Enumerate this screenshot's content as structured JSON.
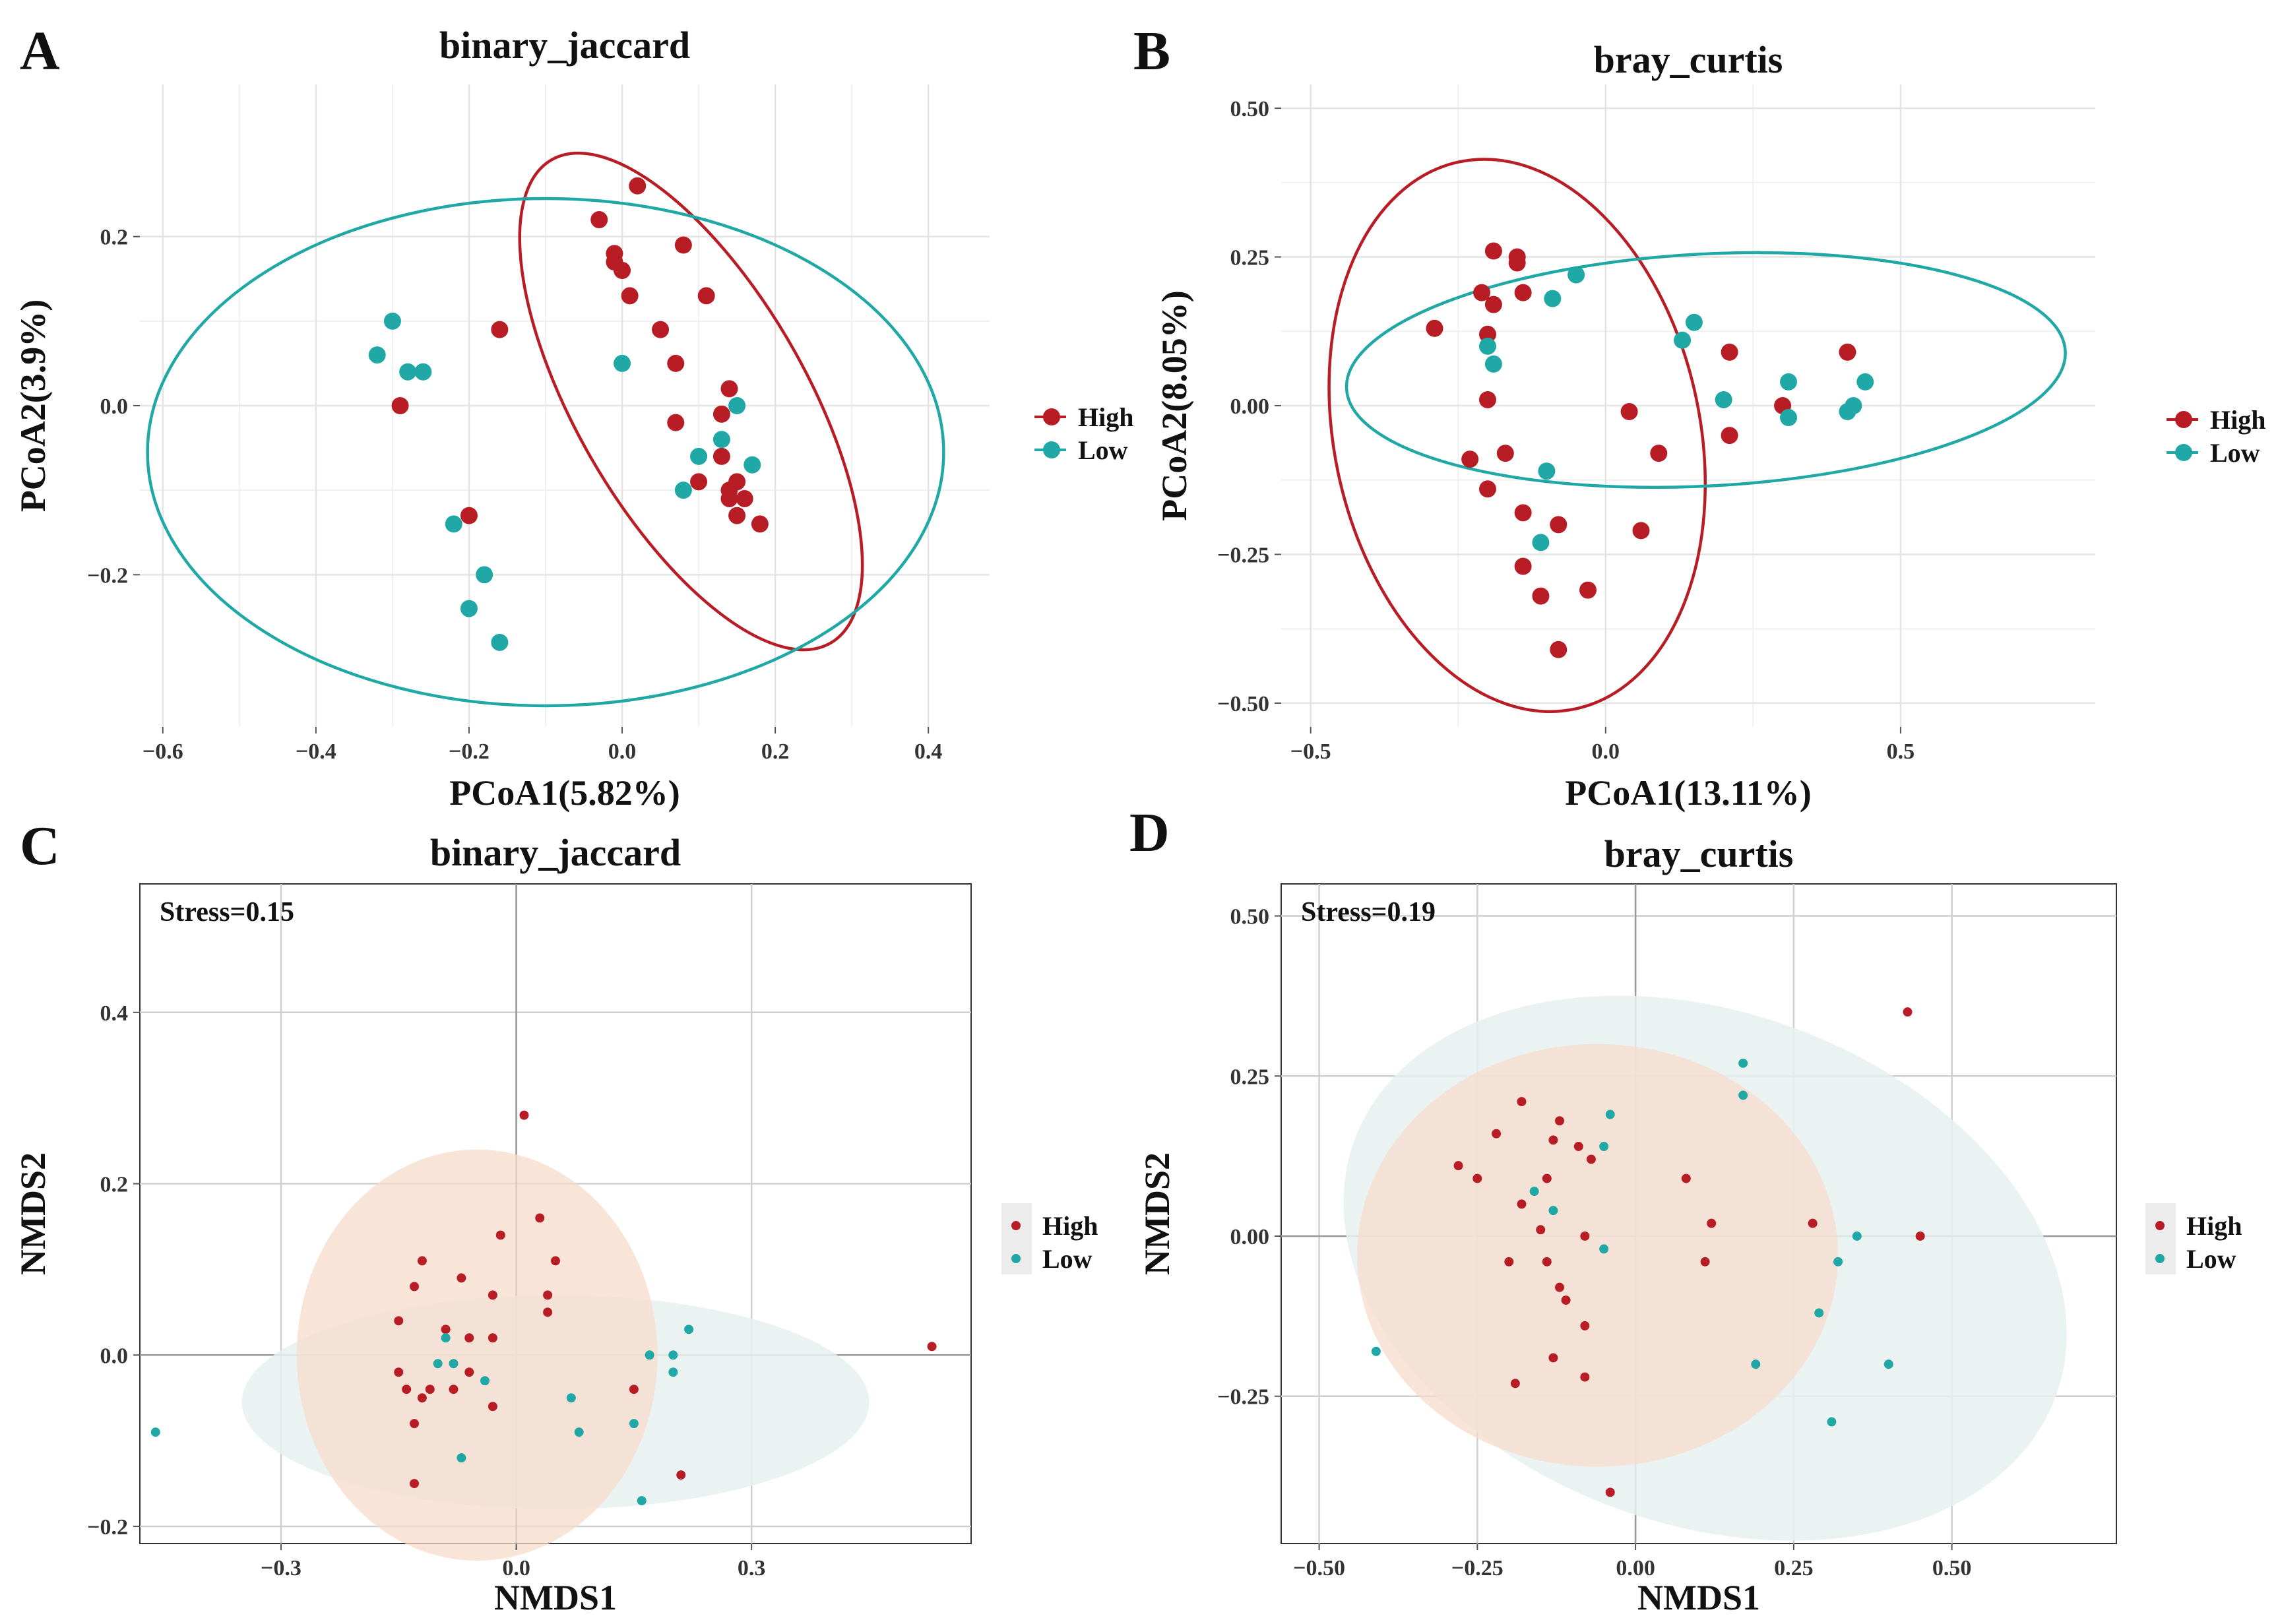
{
  "legend": {
    "groups": [
      "High",
      "Low"
    ]
  },
  "colors": {
    "High": "#b81c25",
    "Low": "#1fa8a6",
    "High_fill": "#f5dccb",
    "Low_fill": "#e7f0f0"
  },
  "chart_data": [
    {
      "panel": "A",
      "type": "scatter",
      "title": "binary_jaccard",
      "xlabel": "PCoA1(5.82%)",
      "ylabel": "PCoA2(3.9%)",
      "xlim": [
        -0.63,
        0.48
      ],
      "ylim": [
        -0.38,
        0.38
      ],
      "xticks": [
        -0.6,
        -0.4,
        -0.2,
        0.0,
        0.2,
        0.4
      ],
      "xticklabels": [
        "−0.6",
        "−0.4",
        "−0.2",
        "0.0",
        "0.2",
        "0.4"
      ],
      "yticks": [
        -0.2,
        0.0,
        0.2
      ],
      "yticklabels": [
        "−0.2",
        "0.0",
        "0.2"
      ],
      "ellipses": {
        "High": {
          "cx": 0.09,
          "cy": 0.005,
          "rx": 0.15,
          "ry": 0.33,
          "angle_deg": -30
        },
        "Low": {
          "cx": -0.1,
          "cy": -0.055,
          "rx": 0.52,
          "ry": 0.3,
          "angle_deg": 0
        }
      },
      "series": [
        {
          "name": "High",
          "points": [
            [
              0.02,
              0.26
            ],
            [
              -0.03,
              0.22
            ],
            [
              -0.01,
              0.18
            ],
            [
              -0.01,
              0.17
            ],
            [
              0.0,
              0.16
            ],
            [
              0.08,
              0.19
            ],
            [
              0.11,
              0.13
            ],
            [
              0.01,
              0.13
            ],
            [
              0.05,
              0.09
            ],
            [
              -0.16,
              0.09
            ],
            [
              0.07,
              0.05
            ],
            [
              0.14,
              0.02
            ],
            [
              -0.29,
              0.0
            ],
            [
              0.13,
              -0.01
            ],
            [
              0.07,
              -0.02
            ],
            [
              0.13,
              -0.06
            ],
            [
              0.1,
              -0.09
            ],
            [
              0.15,
              -0.09
            ],
            [
              0.14,
              -0.1
            ],
            [
              0.14,
              -0.11
            ],
            [
              0.16,
              -0.11
            ],
            [
              0.15,
              -0.13
            ],
            [
              0.18,
              -0.14
            ],
            [
              -0.2,
              -0.13
            ]
          ]
        },
        {
          "name": "Low",
          "points": [
            [
              -0.3,
              0.1
            ],
            [
              -0.32,
              0.06
            ],
            [
              -0.28,
              0.04
            ],
            [
              -0.26,
              0.04
            ],
            [
              0.0,
              0.05
            ],
            [
              0.15,
              0.0
            ],
            [
              0.13,
              -0.04
            ],
            [
              0.1,
              -0.06
            ],
            [
              0.17,
              -0.07
            ],
            [
              0.08,
              -0.1
            ],
            [
              -0.22,
              -0.14
            ],
            [
              -0.18,
              -0.2
            ],
            [
              -0.2,
              -0.24
            ],
            [
              -0.16,
              -0.28
            ]
          ]
        }
      ]
    },
    {
      "panel": "B",
      "type": "scatter",
      "title": "bray_curtis",
      "xlabel": "PCoA1(13.11%)",
      "ylabel": "PCoA2(8.05%)",
      "xlim": [
        -0.55,
        0.83
      ],
      "ylim": [
        -0.54,
        0.54
      ],
      "xticks": [
        -0.5,
        0.0,
        0.5
      ],
      "xticklabels": [
        "−0.5",
        "0.0",
        "0.5"
      ],
      "yticks": [
        -0.5,
        -0.25,
        0.0,
        0.25,
        0.5
      ],
      "yticklabels": [
        "−0.50",
        "−0.25",
        "0.00",
        "0.25",
        "0.50"
      ],
      "ellipses": {
        "High": {
          "cx": -0.15,
          "cy": -0.05,
          "rx": 0.31,
          "ry": 0.47,
          "angle_deg": -12
        },
        "Low": {
          "cx": 0.17,
          "cy": 0.06,
          "rx": 0.61,
          "ry": 0.195,
          "angle_deg": -3
        }
      },
      "series": [
        {
          "name": "High",
          "points": [
            [
              -0.19,
              0.26
            ],
            [
              -0.15,
              0.25
            ],
            [
              -0.15,
              0.24
            ],
            [
              -0.21,
              0.19
            ],
            [
              -0.14,
              0.19
            ],
            [
              -0.19,
              0.17
            ],
            [
              -0.29,
              0.13
            ],
            [
              -0.2,
              0.12
            ],
            [
              -0.2,
              0.01
            ],
            [
              0.21,
              0.09
            ],
            [
              0.41,
              0.09
            ],
            [
              0.3,
              0.0
            ],
            [
              0.04,
              -0.01
            ],
            [
              0.09,
              -0.08
            ],
            [
              0.21,
              -0.05
            ],
            [
              -0.17,
              -0.08
            ],
            [
              -0.23,
              -0.09
            ],
            [
              -0.2,
              -0.14
            ],
            [
              -0.14,
              -0.18
            ],
            [
              -0.08,
              -0.2
            ],
            [
              0.06,
              -0.21
            ],
            [
              -0.14,
              -0.27
            ],
            [
              -0.11,
              -0.32
            ],
            [
              -0.03,
              -0.31
            ],
            [
              -0.08,
              -0.41
            ]
          ]
        },
        {
          "name": "Low",
          "points": [
            [
              -0.05,
              0.22
            ],
            [
              -0.09,
              0.18
            ],
            [
              0.15,
              0.14
            ],
            [
              0.13,
              0.11
            ],
            [
              -0.2,
              0.1
            ],
            [
              -0.19,
              0.07
            ],
            [
              0.2,
              0.01
            ],
            [
              0.31,
              0.04
            ],
            [
              0.31,
              -0.02
            ],
            [
              0.41,
              -0.01
            ],
            [
              0.42,
              0.0
            ],
            [
              0.44,
              0.04
            ],
            [
              -0.1,
              -0.11
            ],
            [
              -0.11,
              -0.23
            ]
          ]
        }
      ]
    },
    {
      "panel": "C",
      "type": "scatter",
      "title": "binary_jaccard",
      "xlabel": "NMDS1",
      "ylabel": "NMDS2",
      "annotation": "Stress=0.15",
      "xlim": [
        -0.48,
        0.58
      ],
      "ylim": [
        -0.22,
        0.55
      ],
      "xticks": [
        -0.3,
        0.0,
        0.3
      ],
      "xticklabels": [
        "−0.3",
        "0.0",
        "0.3"
      ],
      "yticks": [
        -0.2,
        0.0,
        0.2,
        0.4
      ],
      "yticklabels": [
        "−0.2",
        "0.0",
        "0.2",
        "0.4"
      ],
      "ellipses": {
        "High": {
          "cx": -0.05,
          "cy": 0.0,
          "rx": 0.23,
          "ry": 0.24,
          "angle_deg": 0
        },
        "Low": {
          "cx": 0.05,
          "cy": -0.055,
          "rx": 0.4,
          "ry": 0.125,
          "angle_deg": 0
        }
      },
      "series": [
        {
          "name": "High",
          "points": [
            [
              0.01,
              0.28
            ],
            [
              0.03,
              0.16
            ],
            [
              -0.02,
              0.14
            ],
            [
              0.05,
              0.11
            ],
            [
              -0.12,
              0.11
            ],
            [
              -0.07,
              0.09
            ],
            [
              -0.13,
              0.08
            ],
            [
              -0.03,
              0.07
            ],
            [
              0.04,
              0.07
            ],
            [
              0.04,
              0.05
            ],
            [
              -0.15,
              0.04
            ],
            [
              -0.09,
              0.03
            ],
            [
              -0.06,
              0.02
            ],
            [
              -0.03,
              0.02
            ],
            [
              -0.15,
              -0.02
            ],
            [
              -0.06,
              -0.02
            ],
            [
              -0.14,
              -0.04
            ],
            [
              -0.11,
              -0.04
            ],
            [
              -0.08,
              -0.04
            ],
            [
              -0.12,
              -0.05
            ],
            [
              -0.03,
              -0.06
            ],
            [
              -0.13,
              -0.08
            ],
            [
              0.15,
              -0.04
            ],
            [
              0.53,
              0.01
            ],
            [
              -0.13,
              -0.15
            ],
            [
              0.21,
              -0.14
            ]
          ]
        },
        {
          "name": "Low",
          "points": [
            [
              -0.09,
              0.02
            ],
            [
              -0.1,
              -0.01
            ],
            [
              -0.08,
              -0.01
            ],
            [
              -0.04,
              -0.03
            ],
            [
              0.07,
              -0.05
            ],
            [
              0.08,
              -0.09
            ],
            [
              0.17,
              0.0
            ],
            [
              0.2,
              0.0
            ],
            [
              0.22,
              0.03
            ],
            [
              0.2,
              -0.02
            ],
            [
              0.15,
              -0.08
            ],
            [
              -0.07,
              -0.12
            ],
            [
              0.16,
              -0.17
            ],
            [
              -0.46,
              -0.09
            ]
          ]
        }
      ]
    },
    {
      "panel": "D",
      "type": "scatter",
      "title": "bray_curtis",
      "xlabel": "NMDS1",
      "ylabel": "NMDS2",
      "annotation": "Stress=0.19",
      "xlim": [
        -0.56,
        0.76
      ],
      "ylim": [
        -0.48,
        0.55
      ],
      "xticks": [
        -0.5,
        -0.25,
        0.0,
        0.25,
        0.5
      ],
      "xticklabels": [
        "−0.50",
        "−0.25",
        "0.00",
        "0.25",
        "0.50"
      ],
      "yticks": [
        -0.25,
        0.0,
        0.25,
        0.5
      ],
      "yticklabels": [
        "−0.25",
        "0.00",
        "0.25",
        "0.50"
      ],
      "ellipses": {
        "High": {
          "cx": -0.06,
          "cy": -0.03,
          "rx": 0.38,
          "ry": 0.33,
          "angle_deg": 0
        },
        "Low": {
          "cx": 0.11,
          "cy": -0.05,
          "rx": 0.59,
          "ry": 0.4,
          "angle_deg": 20
        }
      },
      "series": [
        {
          "name": "High",
          "points": [
            [
              0.43,
              0.35
            ],
            [
              -0.18,
              0.21
            ],
            [
              -0.12,
              0.18
            ],
            [
              -0.22,
              0.16
            ],
            [
              -0.13,
              0.15
            ],
            [
              -0.09,
              0.14
            ],
            [
              -0.07,
              0.12
            ],
            [
              -0.28,
              0.11
            ],
            [
              -0.25,
              0.09
            ],
            [
              0.08,
              0.09
            ],
            [
              -0.14,
              0.09
            ],
            [
              -0.18,
              0.05
            ],
            [
              0.12,
              0.02
            ],
            [
              0.28,
              0.02
            ],
            [
              -0.15,
              0.01
            ],
            [
              -0.08,
              0.0
            ],
            [
              0.45,
              0.0
            ],
            [
              -0.2,
              -0.04
            ],
            [
              -0.14,
              -0.04
            ],
            [
              0.11,
              -0.04
            ],
            [
              -0.12,
              -0.08
            ],
            [
              -0.11,
              -0.1
            ],
            [
              -0.08,
              -0.14
            ],
            [
              -0.13,
              -0.19
            ],
            [
              -0.08,
              -0.22
            ],
            [
              -0.19,
              -0.23
            ],
            [
              -0.04,
              -0.4
            ]
          ]
        },
        {
          "name": "Low",
          "points": [
            [
              0.17,
              0.27
            ],
            [
              0.17,
              0.22
            ],
            [
              -0.04,
              0.19
            ],
            [
              -0.05,
              0.14
            ],
            [
              -0.16,
              0.07
            ],
            [
              -0.13,
              0.04
            ],
            [
              -0.05,
              -0.02
            ],
            [
              0.35,
              0.0
            ],
            [
              0.32,
              -0.04
            ],
            [
              0.29,
              -0.12
            ],
            [
              0.19,
              -0.2
            ],
            [
              -0.41,
              -0.18
            ],
            [
              0.4,
              -0.2
            ],
            [
              0.31,
              -0.29
            ]
          ]
        }
      ]
    }
  ]
}
